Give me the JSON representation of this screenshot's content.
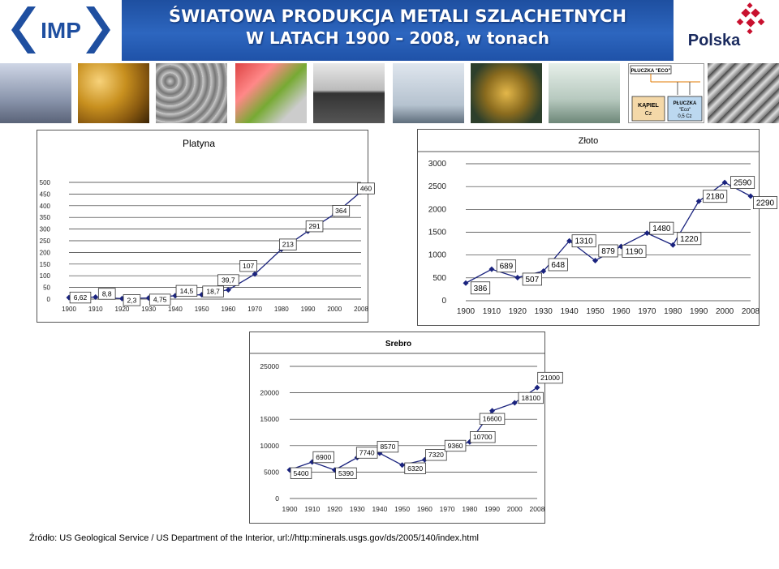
{
  "header": {
    "logo_text": "IMP",
    "title_line1": "ŚWIATOWA PRODUKCJA METALI SZLACHETNYCH",
    "title_line2": "W LATACH 1900 – 2008, w tonach",
    "brand": "Polska",
    "colors": {
      "banner": "#2d66bf",
      "brand_red": "#c8102e",
      "logo_blue": "#1f4fa0"
    }
  },
  "photo_panel": {
    "top_label": "PŁUCZKA \"ECO\"",
    "box1_line1": "KĄPIEL",
    "box1_line2": "Cz",
    "box2_line1": "PŁUCZKA",
    "box2_line2": "\"Eco\"",
    "box2_line3": "0,5 Cz"
  },
  "chart_data": [
    {
      "type": "line",
      "title": "Platyna",
      "x": [
        1900,
        1910,
        1920,
        1930,
        1940,
        1950,
        1960,
        1970,
        1980,
        1990,
        2000,
        2008
      ],
      "values": [
        6.62,
        8.8,
        2.3,
        4.75,
        14.5,
        18.7,
        39.7,
        107,
        213,
        291,
        364,
        460
      ],
      "labels": [
        "6,62",
        "8,8",
        "2,3",
        "4,75",
        "14,5",
        "18,7",
        "39,7",
        "107",
        "213",
        "291",
        "364",
        "460"
      ],
      "yticks": [
        "0",
        "50",
        "100",
        "150",
        "200",
        "250",
        "300",
        "350",
        "400",
        "450",
        "500"
      ],
      "ylim": [
        0,
        500
      ],
      "xticks": [
        "1900",
        "1910",
        "1920",
        "1930",
        "1940",
        "1950",
        "1960",
        "1970",
        "1980",
        "1990",
        "2000",
        "2008"
      ],
      "grid": true,
      "color": "#1a237e"
    },
    {
      "type": "line",
      "title": "Złoto",
      "x": [
        1900,
        1910,
        1920,
        1930,
        1940,
        1950,
        1960,
        1970,
        1980,
        1990,
        2000,
        2008
      ],
      "values": [
        386,
        689,
        507,
        648,
        1310,
        879,
        1190,
        1480,
        1220,
        2180,
        2590,
        2290
      ],
      "labels": [
        "386",
        "689",
        "507",
        "648",
        "1310",
        "879",
        "1190",
        "1480",
        "1220",
        "2180",
        "2590",
        "2290"
      ],
      "yticks": [
        "0",
        "500",
        "1000",
        "1500",
        "2000",
        "2500",
        "3000"
      ],
      "ylim": [
        0,
        3000
      ],
      "xticks": [
        "1900",
        "1910",
        "1920",
        "1930",
        "1940",
        "1950",
        "1960",
        "1970",
        "1980",
        "1990",
        "2000",
        "2008"
      ],
      "grid": true,
      "color": "#1a237e"
    },
    {
      "type": "line",
      "title": "Srebro",
      "x": [
        1900,
        1910,
        1920,
        1930,
        1940,
        1950,
        1960,
        1970,
        1980,
        1990,
        2000,
        2008
      ],
      "values": [
        5400,
        6900,
        5390,
        7740,
        8570,
        6320,
        7320,
        9360,
        10700,
        16600,
        18100,
        21000
      ],
      "labels": [
        "5400",
        "6900",
        "5390",
        "7740",
        "8570",
        "6320",
        "7320",
        "9360",
        "10700",
        "16600",
        "18100",
        "21000"
      ],
      "yticks": [
        "0",
        "5000",
        "10000",
        "15000",
        "20000",
        "25000"
      ],
      "ylim": [
        0,
        25000
      ],
      "xticks": [
        "1900",
        "1910",
        "1920",
        "1930",
        "1940",
        "1950",
        "1960",
        "1970",
        "1980",
        "1990",
        "2000",
        "2008"
      ],
      "grid": true,
      "color": "#1a237e"
    }
  ],
  "footer": {
    "source": "Źródło: US Geological Service / US Department of the Interior, url://http:minerals.usgs.gov/ds/2005/140/index.html"
  }
}
